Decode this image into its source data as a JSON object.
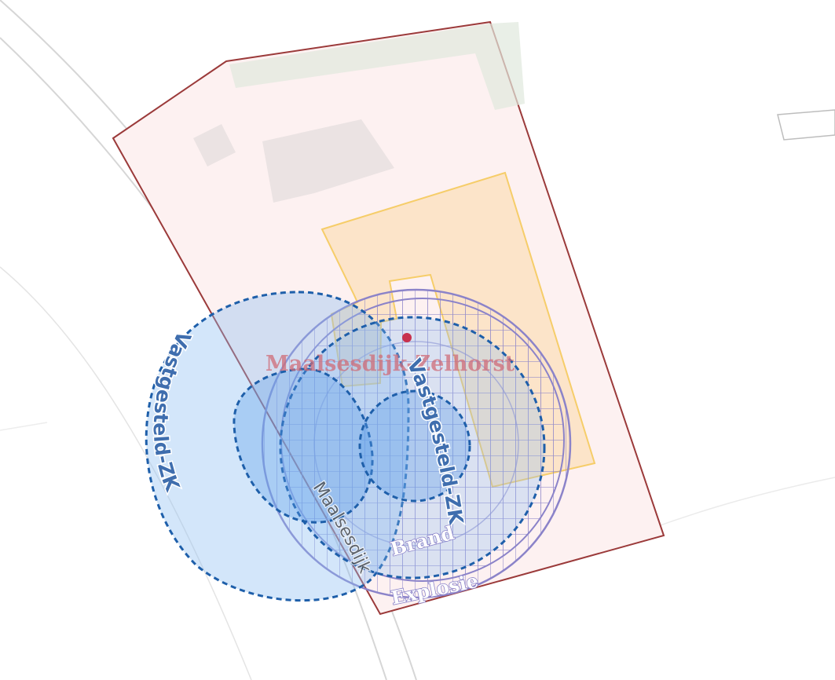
{
  "map": {
    "place_label": "Maalsesdijk-Zelhorst",
    "road_label": "Maalsesdijk",
    "zone_labels": [
      "Vastgesteld-ZK",
      "Vastgesteld-ZK"
    ],
    "ring_labels": [
      "Brand",
      "Explosie"
    ],
    "colors": {
      "parcel_fill": "#fdf1f1",
      "parcel_border": "#9b3a3a",
      "building_fill": "#fbe2c2",
      "building_border": "#f6cd69",
      "zone_fill": "#8cbcf3",
      "zone_border": "#1e5faa",
      "ring_border": "#8b83c9",
      "point": "#c8304c"
    }
  }
}
